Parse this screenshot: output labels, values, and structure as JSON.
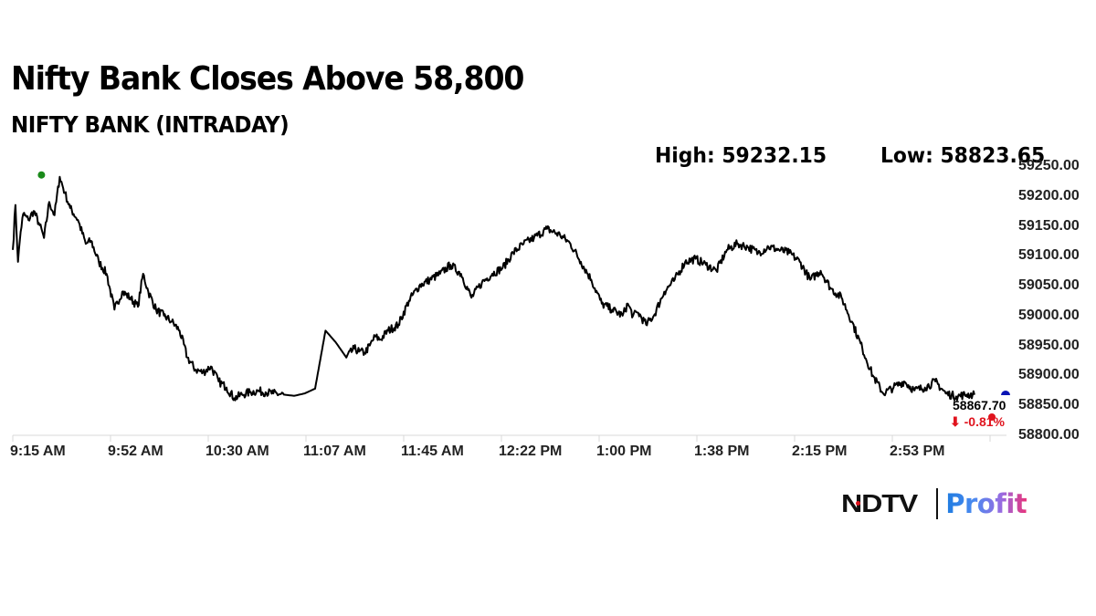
{
  "header": {
    "title": "Nifty Bank Closes Above 58,800",
    "subtitle": "NIFTY BANK (INTRADAY)",
    "high_label": "High: 59232.15",
    "low_label": "Low: 58823.65"
  },
  "last_price": {
    "value": "58867.70",
    "change": "⬇ -0.81%",
    "change_color": "#e0141e"
  },
  "logo": {
    "brand": "NDTV",
    "product": "Profit"
  },
  "colors": {
    "line": "#000000",
    "high_marker": "#1a8a1a",
    "last_marker": "#0a14b4",
    "low_marker": "#e0141e",
    "axis": "#d9d9d9"
  },
  "chart_data": {
    "type": "line",
    "title": "Nifty Bank Closes Above 58,800",
    "subtitle": "NIFTY BANK (INTRADAY)",
    "xlabel": "",
    "ylabel": "",
    "x_tick_labels": [
      "9:15 AM",
      "9:52 AM",
      "10:30 AM",
      "11:07 AM",
      "11:45 AM",
      "12:22 PM",
      "1:00 PM",
      "1:38 PM",
      "2:15 PM",
      "2:53 PM"
    ],
    "y_tick_labels": [
      "59250.00",
      "59200.00",
      "59150.00",
      "59100.00",
      "59050.00",
      "59000.00",
      "58950.00",
      "58900.00",
      "58850.00",
      "58800.00"
    ],
    "ylim": [
      58800,
      59250
    ],
    "grid": false,
    "annotations": {
      "high": 59232.15,
      "low": 58823.65,
      "last": 58867.7,
      "change_pct": -0.81
    },
    "series": [
      {
        "name": "NIFTY BANK",
        "x_minutes_from_open": [
          0,
          1,
          2,
          3,
          4,
          6,
          8,
          10,
          12,
          14,
          16,
          18,
          20,
          22,
          25,
          28,
          30,
          33,
          36,
          39,
          42,
          45,
          48,
          50,
          52,
          55,
          58,
          61,
          64,
          67,
          70,
          73,
          76,
          79,
          82,
          85,
          88,
          91,
          94,
          97,
          100,
          104,
          108,
          112,
          116,
          120,
          124,
          128,
          131,
          133,
          135,
          137,
          139,
          141,
          144,
          148,
          152,
          156,
          160,
          164,
          168,
          172,
          176,
          180,
          184,
          188,
          192,
          196,
          200,
          205,
          210,
          214,
          218,
          222,
          226,
          230,
          234,
          236,
          238,
          240,
          243,
          246,
          250,
          254,
          258,
          262,
          266,
          270,
          274,
          278,
          282,
          286,
          290,
          294,
          298,
          302,
          306,
          310,
          314,
          318,
          322,
          326,
          330,
          334,
          338,
          342,
          346,
          350,
          354,
          358,
          362,
          366,
          369
        ],
        "values": [
          59110,
          59185,
          59090,
          59140,
          59170,
          59160,
          59175,
          59155,
          59130,
          59190,
          59168,
          59232,
          59205,
          59180,
          59160,
          59120,
          59125,
          59090,
          59070,
          59010,
          59040,
          59030,
          59015,
          59070,
          59040,
          59010,
          59000,
          58990,
          58975,
          58930,
          58910,
          58905,
          58915,
          58890,
          58880,
          58862,
          58868,
          58872,
          58874,
          58872,
          58870,
          58868,
          58866,
          58870,
          58878,
          58975,
          58955,
          58930,
          58945,
          58940,
          58938,
          58950,
          58965,
          58960,
          58975,
          58985,
          59025,
          59050,
          59060,
          59070,
          59085,
          59070,
          59030,
          59055,
          59070,
          59080,
          59105,
          59120,
          59130,
          59145,
          59135,
          59120,
          59090,
          59060,
          59020,
          59010,
          59000,
          59020,
          59000,
          59005,
          58985,
          59000,
          59040,
          59060,
          59090,
          59095,
          59085,
          59075,
          59110,
          59120,
          59115,
          59105,
          59115,
          59110,
          59105,
          59090,
          59060,
          59075,
          59045,
          59030,
          58990,
          58945,
          58900,
          58870,
          58880,
          58890,
          58875,
          58880,
          58890,
          58870,
          58865,
          58868,
          58867.7
        ]
      }
    ]
  }
}
